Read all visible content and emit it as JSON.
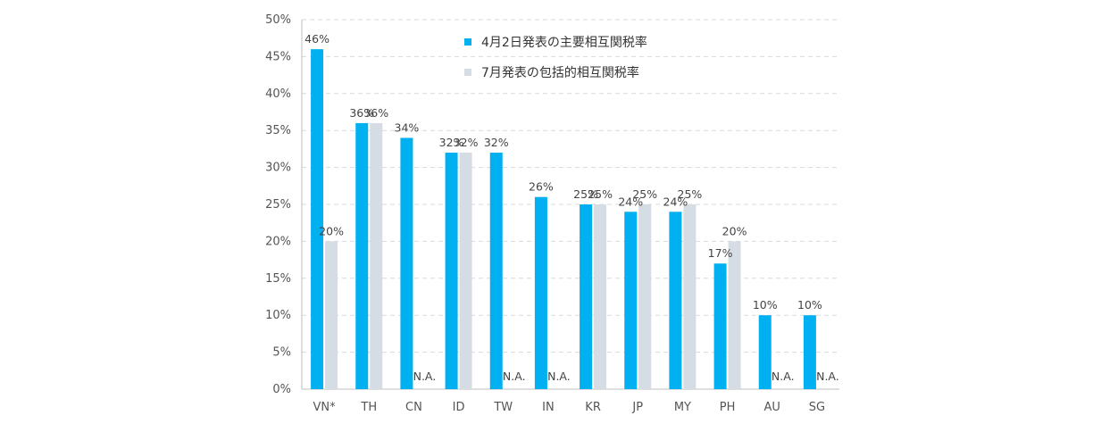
{
  "chart_data": {
    "type": "bar",
    "title": "",
    "xlabel": "",
    "ylabel": "",
    "ylim": [
      0,
      50
    ],
    "y_ticks": [
      "0%",
      "5%",
      "10%",
      "15%",
      "20%",
      "25%",
      "30%",
      "35%",
      "40%",
      "45%",
      "50%"
    ],
    "grid": true,
    "legend_position": "top-center",
    "na_label": "N.A.",
    "categories": [
      "VN*",
      "TH",
      "CN",
      "ID",
      "TW",
      "IN",
      "KR",
      "JP",
      "MY",
      "PH",
      "AU",
      "SG"
    ],
    "series": [
      {
        "name": "4月2日発表の主要相互関税率",
        "color": "#00b0f0",
        "values": [
          46,
          36,
          34,
          32,
          32,
          26,
          25,
          24,
          24,
          17,
          10,
          10
        ],
        "labels": [
          "46%",
          "36%",
          "34%",
          "32%",
          "32%",
          "26%",
          "25%",
          "24%",
          "24%",
          "17%",
          "10%",
          "10%"
        ]
      },
      {
        "name": "7月発表の包括的相互関税率",
        "color": "#d6dce4",
        "values": [
          20,
          36,
          null,
          32,
          null,
          null,
          25,
          25,
          25,
          20,
          null,
          null
        ],
        "labels": [
          "20%",
          "36%",
          "N.A.",
          "32%",
          "N.A.",
          "N.A.",
          "25%",
          "25%",
          "25%",
          "20%",
          "N.A.",
          "N.A."
        ]
      }
    ]
  }
}
